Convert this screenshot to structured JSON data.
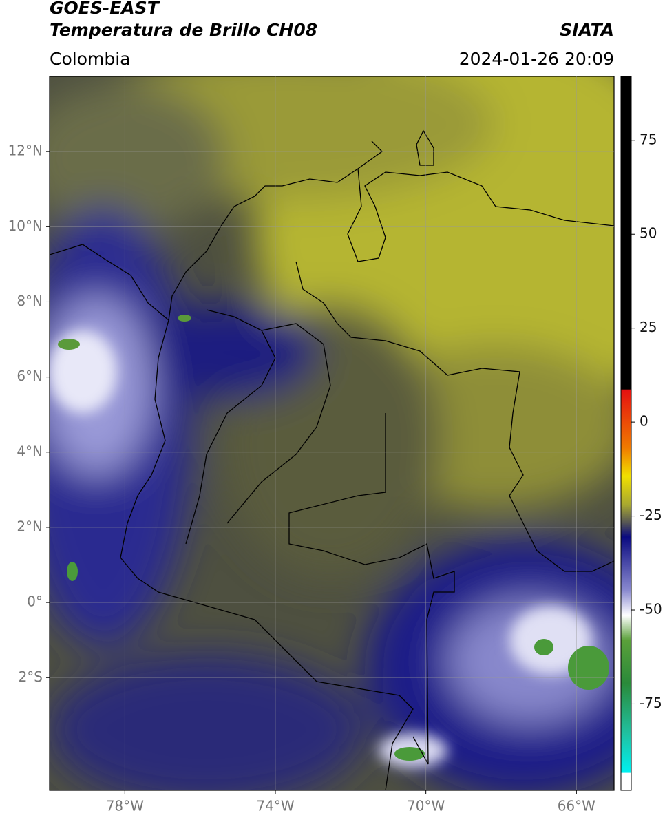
{
  "header": {
    "title_line1": "GOES-EAST",
    "title_line2": "Temperatura de Brillo CH08",
    "region": "Colombia",
    "source": "SIATA",
    "timestamp": "2024-01-26 20:09"
  },
  "map": {
    "latlim": [
      -5,
      14
    ],
    "lonlim": [
      -80,
      -65
    ],
    "lat_ticks": [
      {
        "value": 12,
        "label": "12°N"
      },
      {
        "value": 10,
        "label": "10°N"
      },
      {
        "value": 8,
        "label": "8°N"
      },
      {
        "value": 6,
        "label": "6°N"
      },
      {
        "value": 4,
        "label": "4°N"
      },
      {
        "value": 2,
        "label": "2°N"
      },
      {
        "value": 0,
        "label": "0°"
      },
      {
        "value": -2,
        "label": "2°S"
      }
    ],
    "lon_ticks": [
      {
        "value": -78,
        "label": "78°W"
      },
      {
        "value": -74,
        "label": "74°W"
      },
      {
        "value": -70,
        "label": "70°W"
      },
      {
        "value": -66,
        "label": "66°W"
      }
    ]
  },
  "colorbar": {
    "clim": [
      -98,
      92
    ],
    "ticks": [
      75,
      50,
      25,
      0,
      -25,
      -50,
      -75
    ]
  }
}
